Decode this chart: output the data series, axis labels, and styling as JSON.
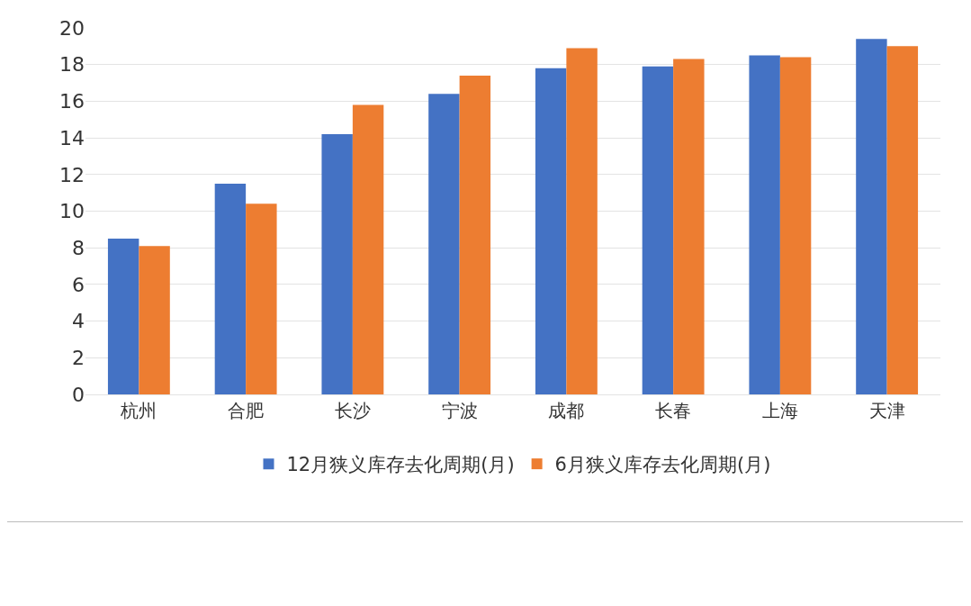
{
  "chart_data": {
    "type": "bar",
    "categories": [
      "杭州",
      "合肥",
      "长沙",
      "宁波",
      "成都",
      "长春",
      "上海",
      "天津"
    ],
    "series": [
      {
        "name": "12月狭义库存去化周期(月)",
        "color": "#4472c4",
        "values": [
          8.5,
          11.5,
          14.2,
          16.4,
          17.8,
          17.9,
          18.5,
          19.4
        ]
      },
      {
        "name": "6月狭义库存去化周期(月)",
        "color": "#ed7d31",
        "values": [
          8.1,
          10.4,
          15.8,
          17.4,
          18.9,
          18.3,
          18.4,
          19.0
        ]
      }
    ],
    "ylim": [
      0,
      20
    ],
    "yticks": [
      0,
      2,
      4,
      6,
      8,
      10,
      12,
      14,
      16,
      18,
      20
    ],
    "grid": "y",
    "legend": "bottom"
  }
}
